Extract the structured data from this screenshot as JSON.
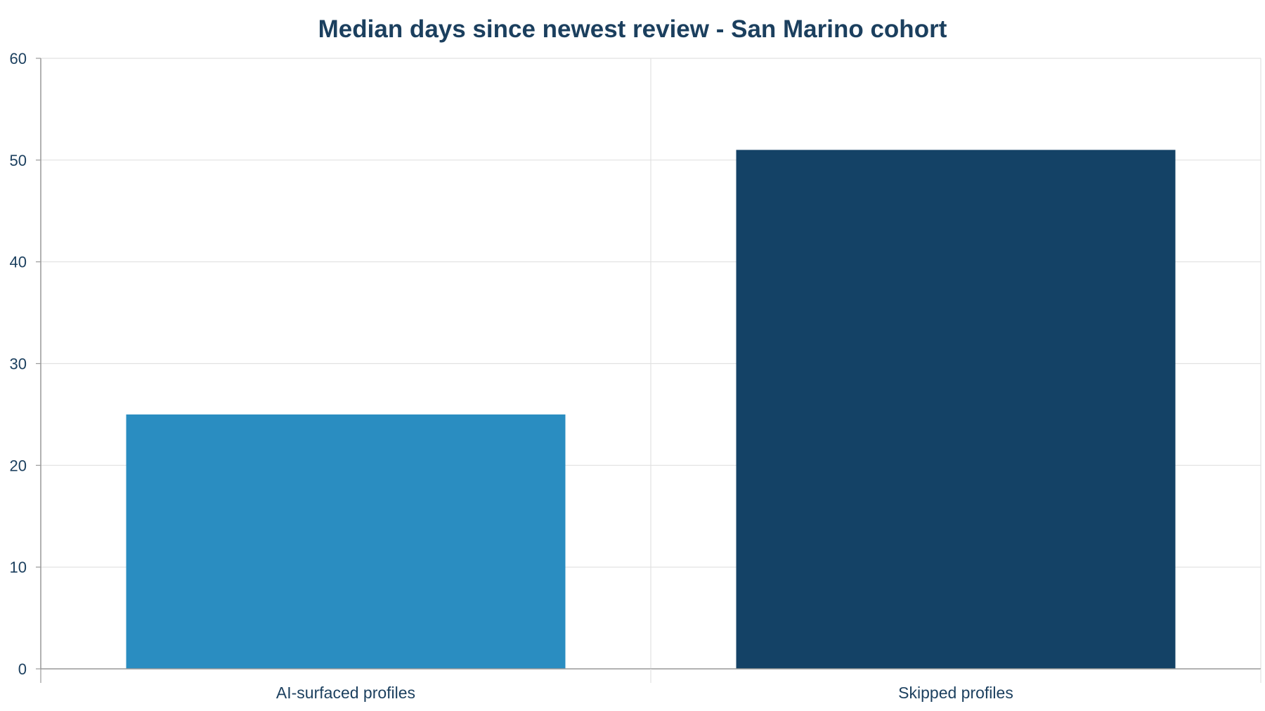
{
  "chart_data": {
    "type": "bar",
    "title": "Median days since newest review - San Marino cohort",
    "xlabel": "",
    "ylabel": "",
    "categories": [
      "AI-surfaced profiles",
      "Skipped profiles"
    ],
    "values": [
      25,
      51
    ],
    "bar_colors": [
      "#2a8dc1",
      "#144266"
    ],
    "ylim": [
      0,
      60
    ],
    "yticks": [
      0,
      10,
      20,
      30,
      40,
      50,
      60
    ],
    "grid": true,
    "legend": "none"
  },
  "colors": {
    "text": "#1b3f5e",
    "grid": "#e1e1e1",
    "axis": "#999999",
    "background": "#ffffff"
  }
}
